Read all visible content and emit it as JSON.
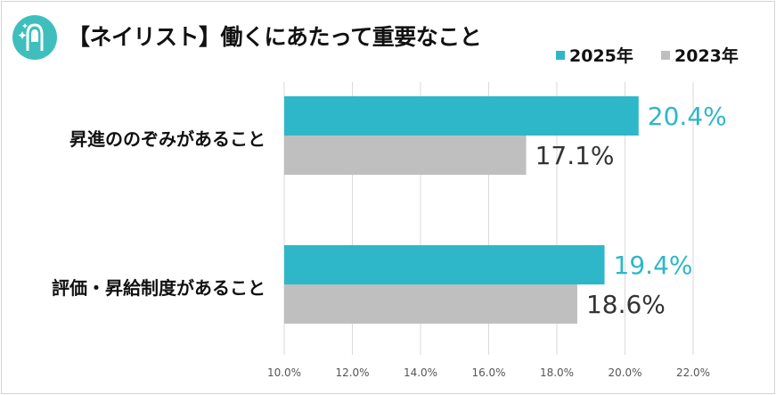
{
  "header": {
    "title": "【ネイリスト】働くにあたって重要なこと",
    "icon": "nail-hand-icon",
    "icon_color": "#3ebfbd"
  },
  "colors": {
    "series_2025": "#2eb7c8",
    "series_2023": "#bfbfbf",
    "label_2025": "#2eb7c8",
    "label_2023": "#333333",
    "gridline": "#d9d9d9"
  },
  "chart_data": {
    "type": "bar",
    "orientation": "horizontal",
    "categories": [
      "昇進ののぞみがあること",
      "評価・昇給制度があること"
    ],
    "series": [
      {
        "name": "2025年",
        "values": [
          20.4,
          19.4
        ],
        "labels": [
          "20.4%",
          "19.4%"
        ]
      },
      {
        "name": "2023年",
        "values": [
          17.1,
          18.6
        ],
        "labels": [
          "17.1%",
          "18.6%"
        ]
      }
    ],
    "xlim": [
      10,
      22
    ],
    "x_ticks": [
      10,
      12,
      14,
      16,
      18,
      20,
      22
    ],
    "x_tick_labels": [
      "10.0%",
      "12.0%",
      "14.0%",
      "16.0%",
      "18.0%",
      "20.0%",
      "22.0%"
    ],
    "grid": true,
    "legend": "top-right",
    "title": "【ネイリスト】働くにあたって重要なこと",
    "xlabel": "",
    "ylabel": ""
  }
}
